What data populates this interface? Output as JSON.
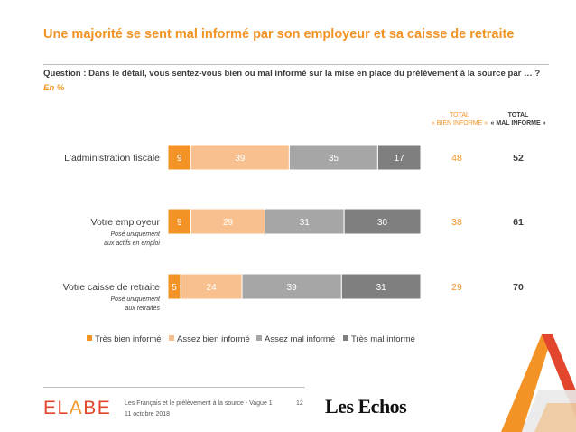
{
  "slide": {
    "title": "Une majorité se sent mal informé par son employeur et sa caisse de retraite",
    "question": "Question : Dans le détail, vous sentez-vous bien ou mal informé sur la mise en place du prélèvement à la source par … ?",
    "unit": "En  %"
  },
  "totals_headers": {
    "good_line1": "TOTAL",
    "good_line2": "« BIEN INFORME »",
    "bad_line1": "TOTAL",
    "bad_line2": "« MAL INFORME »"
  },
  "colors": {
    "accent": "#f39325",
    "series": [
      "#f39325",
      "#f9c08f",
      "#a6a6a6",
      "#7f7f7f"
    ]
  },
  "chart_data": {
    "type": "bar",
    "orientation": "horizontal",
    "stacked": true,
    "categories": [
      {
        "label": "L'administration fiscale",
        "note": []
      },
      {
        "label": "Votre employeur",
        "note": [
          "Posé uniquement",
          "aux actifs en emploi"
        ]
      },
      {
        "label": "Votre caisse de retraite",
        "note": [
          "Posé uniquement",
          "aux retraités"
        ]
      }
    ],
    "series": [
      {
        "name": "Très bien informé",
        "values": [
          9,
          9,
          5
        ]
      },
      {
        "name": "Assez bien informé",
        "values": [
          39,
          29,
          24
        ]
      },
      {
        "name": "Assez mal informé",
        "values": [
          35,
          31,
          39
        ]
      },
      {
        "name": "Très mal informé",
        "values": [
          17,
          30,
          31
        ]
      }
    ],
    "totals_good": [
      48,
      38,
      29
    ],
    "totals_bad": [
      52,
      61,
      70
    ],
    "xlim": [
      0,
      100
    ],
    "legend": "bottom",
    "grid": false
  },
  "footer": {
    "logo": "ELABE",
    "line1": "Les Français et le prélèvement à la source - Vague 1",
    "line2": "11 octobre 2018",
    "page": "12",
    "partner": "Les Echos"
  }
}
